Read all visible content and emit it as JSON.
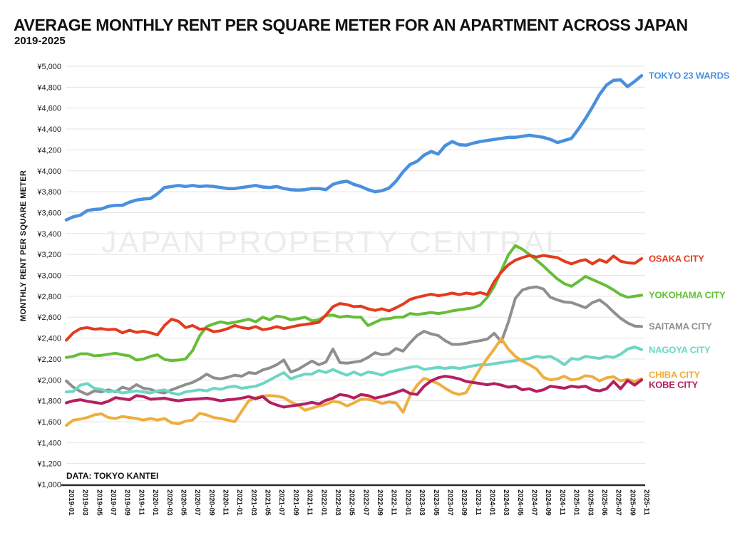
{
  "header": {
    "title": "AVERAGE MONTHLY RENT PER SQUARE METER FOR AN APARTMENT ACROSS JAPAN",
    "subtitle": "2019-2025"
  },
  "watermark": "JAPAN PROPERTY CENTRAL",
  "source_note": "DATA: TOKYO KANTEI",
  "chart_data": {
    "type": "line",
    "title": "AVERAGE MONTHLY RENT PER SQUARE METER FOR AN APARTMENT ACROSS JAPAN",
    "subtitle": "2019-2025",
    "xlabel": "",
    "ylabel": "MONTHLY RENT PER SQUARE METER",
    "ylim": [
      1000,
      5000
    ],
    "ytick_step": 200,
    "currency_prefix": "¥",
    "grid": true,
    "legend_position": "right of line ends",
    "x_start": "2019-01",
    "x_end": "2025-11",
    "x_points_monthly": 83,
    "x_tick_labels": [
      "2019-01",
      "2019-03",
      "2019-05",
      "2019-07",
      "2019-09",
      "2019-11",
      "2020-01",
      "2020-03",
      "2020-05",
      "2020-07",
      "2020-09",
      "2020-11",
      "2021-01",
      "2021-03",
      "2021-05",
      "2021-07",
      "2021-09",
      "2021-11",
      "2022-01",
      "2022-03",
      "2022-05",
      "2022-07",
      "2022-09",
      "2022-11",
      "2023-01",
      "2023-03",
      "2023-05",
      "2023-07",
      "2023-09",
      "2023-11",
      "2024-01",
      "2024-03",
      "2024-05",
      "2024-07",
      "2024-09",
      "2024-11",
      "2025-01",
      "2025-03",
      "2025-06",
      "2025-07",
      "2025-09",
      "2025-11"
    ],
    "series": [
      {
        "name": "SAITAMA CITY",
        "color": "#8f8f8f",
        "values": [
          1990,
          1930,
          1890,
          1860,
          1895,
          1885,
          1905,
          1885,
          1930,
          1910,
          1955,
          1920,
          1910,
          1885,
          1875,
          1905,
          1930,
          1955,
          1975,
          2010,
          2055,
          2020,
          2010,
          2025,
          2045,
          2035,
          2070,
          2060,
          2095,
          2115,
          2145,
          2190,
          2075,
          2100,
          2140,
          2180,
          2145,
          2170,
          2295,
          2165,
          2160,
          2170,
          2180,
          2215,
          2260,
          2240,
          2250,
          2300,
          2275,
          2355,
          2425,
          2465,
          2440,
          2425,
          2375,
          2340,
          2340,
          2350,
          2365,
          2375,
          2390,
          2445,
          2365,
          2550,
          2780,
          2860,
          2880,
          2890,
          2870,
          2790,
          2765,
          2745,
          2740,
          2715,
          2690,
          2740,
          2765,
          2715,
          2650,
          2590,
          2545,
          2515,
          2510
        ]
      },
      {
        "name": "NAGOYA CITY",
        "color": "#6cd6c5",
        "values": [
          1885,
          1890,
          1950,
          1965,
          1920,
          1910,
          1885,
          1895,
          1875,
          1885,
          1895,
          1885,
          1875,
          1895,
          1905,
          1875,
          1860,
          1885,
          1895,
          1905,
          1895,
          1920,
          1910,
          1930,
          1940,
          1920,
          1930,
          1940,
          1965,
          2000,
          2035,
          2070,
          2010,
          2035,
          2055,
          2055,
          2090,
          2070,
          2100,
          2070,
          2045,
          2075,
          2045,
          2075,
          2065,
          2045,
          2075,
          2090,
          2105,
          2120,
          2130,
          2100,
          2110,
          2120,
          2110,
          2120,
          2110,
          2120,
          2135,
          2145,
          2145,
          2155,
          2165,
          2175,
          2185,
          2195,
          2205,
          2225,
          2215,
          2225,
          2190,
          2145,
          2205,
          2195,
          2225,
          2215,
          2205,
          2225,
          2215,
          2245,
          2295,
          2315,
          2290
        ]
      },
      {
        "name": "CHIBA CITY",
        "color": "#eeae3f",
        "values": [
          1565,
          1615,
          1625,
          1640,
          1665,
          1675,
          1640,
          1630,
          1650,
          1640,
          1630,
          1615,
          1630,
          1615,
          1630,
          1590,
          1580,
          1605,
          1615,
          1680,
          1665,
          1640,
          1630,
          1615,
          1600,
          1700,
          1800,
          1830,
          1845,
          1850,
          1845,
          1830,
          1790,
          1760,
          1710,
          1730,
          1750,
          1765,
          1795,
          1785,
          1750,
          1780,
          1815,
          1815,
          1800,
          1775,
          1790,
          1780,
          1690,
          1850,
          1950,
          2015,
          1990,
          1965,
          1920,
          1880,
          1860,
          1880,
          2000,
          2110,
          2205,
          2295,
          2395,
          2295,
          2225,
          2180,
          2145,
          2105,
          2025,
          2000,
          2010,
          2035,
          2000,
          2010,
          2040,
          2030,
          1990,
          2020,
          2030,
          1990,
          2005,
          1985,
          2010
        ]
      },
      {
        "name": "KOBE CITY",
        "color": "#b51f60",
        "values": [
          1780,
          1800,
          1810,
          1795,
          1785,
          1775,
          1795,
          1830,
          1820,
          1810,
          1850,
          1840,
          1815,
          1820,
          1825,
          1810,
          1800,
          1810,
          1815,
          1820,
          1825,
          1815,
          1800,
          1810,
          1815,
          1825,
          1840,
          1820,
          1840,
          1785,
          1760,
          1740,
          1750,
          1760,
          1770,
          1785,
          1770,
          1805,
          1825,
          1860,
          1850,
          1825,
          1860,
          1850,
          1825,
          1840,
          1858,
          1880,
          1905,
          1870,
          1860,
          1940,
          1990,
          2020,
          2035,
          2025,
          2010,
          1985,
          1975,
          1965,
          1953,
          1965,
          1950,
          1930,
          1940,
          1905,
          1915,
          1890,
          1905,
          1940,
          1930,
          1920,
          1940,
          1930,
          1940,
          1905,
          1895,
          1915,
          1985,
          1915,
          1995,
          1950,
          2000
        ]
      },
      {
        "name": "YOKOHAMA CITY",
        "color": "#66bd39",
        "values": [
          2215,
          2225,
          2250,
          2250,
          2230,
          2235,
          2245,
          2255,
          2240,
          2230,
          2190,
          2200,
          2225,
          2240,
          2195,
          2185,
          2190,
          2200,
          2280,
          2420,
          2510,
          2535,
          2555,
          2540,
          2550,
          2565,
          2580,
          2555,
          2600,
          2575,
          2610,
          2600,
          2575,
          2585,
          2600,
          2565,
          2575,
          2615,
          2620,
          2600,
          2610,
          2600,
          2600,
          2520,
          2550,
          2580,
          2585,
          2600,
          2600,
          2635,
          2625,
          2635,
          2645,
          2635,
          2645,
          2660,
          2670,
          2680,
          2690,
          2715,
          2790,
          2895,
          3045,
          3195,
          3285,
          3250,
          3200,
          3145,
          3090,
          3025,
          2965,
          2920,
          2895,
          2940,
          2990,
          2960,
          2930,
          2900,
          2860,
          2815,
          2790,
          2800,
          2810
        ]
      },
      {
        "name": "OSAKA CITY",
        "color": "#e33b1e",
        "values": [
          2380,
          2450,
          2490,
          2500,
          2485,
          2490,
          2480,
          2485,
          2450,
          2475,
          2455,
          2465,
          2450,
          2430,
          2520,
          2580,
          2560,
          2500,
          2520,
          2485,
          2490,
          2460,
          2470,
          2490,
          2520,
          2500,
          2490,
          2510,
          2480,
          2490,
          2510,
          2490,
          2505,
          2520,
          2530,
          2540,
          2550,
          2620,
          2700,
          2730,
          2720,
          2700,
          2705,
          2680,
          2665,
          2680,
          2660,
          2690,
          2725,
          2770,
          2790,
          2805,
          2820,
          2805,
          2815,
          2830,
          2815,
          2830,
          2820,
          2835,
          2815,
          2940,
          3030,
          3100,
          3145,
          3170,
          3190,
          3175,
          3190,
          3180,
          3170,
          3135,
          3110,
          3135,
          3150,
          3110,
          3150,
          3125,
          3185,
          3135,
          3120,
          3115,
          3160
        ]
      },
      {
        "name": "TOKYO 23 WARDS",
        "color": "#4a90dd",
        "values": [
          3530,
          3560,
          3575,
          3620,
          3630,
          3635,
          3660,
          3670,
          3670,
          3700,
          3720,
          3730,
          3735,
          3780,
          3840,
          3850,
          3860,
          3850,
          3860,
          3850,
          3855,
          3850,
          3840,
          3830,
          3830,
          3840,
          3850,
          3860,
          3845,
          3840,
          3850,
          3830,
          3820,
          3815,
          3820,
          3830,
          3830,
          3820,
          3870,
          3890,
          3900,
          3870,
          3850,
          3820,
          3800,
          3810,
          3835,
          3900,
          3990,
          4060,
          4090,
          4150,
          4185,
          4160,
          4240,
          4280,
          4250,
          4245,
          4265,
          4280,
          4290,
          4300,
          4310,
          4320,
          4320,
          4330,
          4340,
          4330,
          4320,
          4300,
          4270,
          4290,
          4310,
          4400,
          4500,
          4610,
          4730,
          4820,
          4865,
          4870,
          4805,
          4855,
          4910
        ]
      }
    ]
  }
}
